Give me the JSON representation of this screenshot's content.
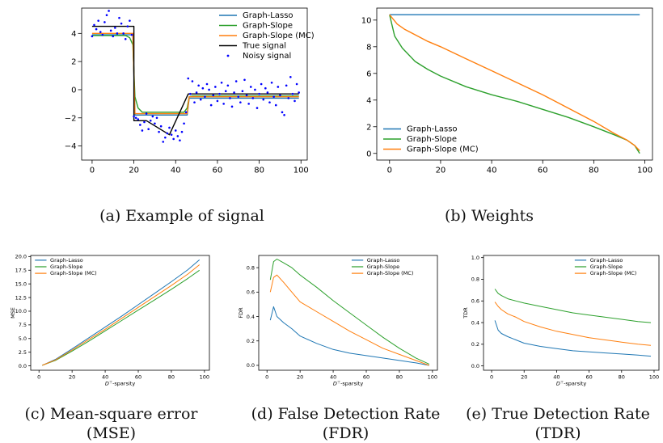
{
  "colors": {
    "lasso": "#1f77b4",
    "slope": "#2ca02c",
    "slope_mc": "#ff7f0e",
    "truth": "#000000",
    "noisy": "#0000ff"
  },
  "captions": {
    "a": [
      "(a)  Example of signal"
    ],
    "b": [
      "(b)  Weights"
    ],
    "c": [
      "(c)  Mean-square error",
      "(MSE)"
    ],
    "d": [
      "(d)  False Detection Rate",
      "(FDR)"
    ],
    "e": [
      "(e)  True Detection Rate",
      "(TDR)"
    ]
  },
  "chart_data": [
    {
      "id": "a",
      "type": "line",
      "xlim": [
        -5,
        103
      ],
      "ylim": [
        -5.0,
        5.8
      ],
      "xticks": [
        "0",
        "20",
        "40",
        "60",
        "80",
        "100"
      ],
      "xtick_values": [
        0,
        20,
        40,
        60,
        80,
        100
      ],
      "yticks": [
        "−4",
        "−2",
        "0",
        "2",
        "4"
      ],
      "ytick_values": [
        -4,
        -2,
        0,
        2,
        4
      ],
      "legend": {
        "position": "top-right",
        "entries": [
          "Graph-Lasso",
          "Graph-Slope",
          "Graph-Slope (MC)",
          "True signal",
          "Noisy signal"
        ]
      },
      "series": [
        {
          "name": "Graph-Lasso",
          "color": "lasso",
          "x": [
            0,
            19.5,
            20.5,
            45.5,
            46.5,
            99
          ],
          "y": [
            3.9,
            3.9,
            -1.8,
            -1.8,
            -0.6,
            -0.6
          ]
        },
        {
          "name": "Graph-Slope",
          "color": "slope",
          "x": [
            0,
            16,
            18,
            19.5,
            20.5,
            22,
            24,
            44,
            45.5,
            46.5,
            48,
            99
          ],
          "y": [
            3.85,
            3.85,
            3.7,
            3.2,
            -0.5,
            -1.3,
            -1.6,
            -1.6,
            -1.3,
            -0.5,
            -0.45,
            -0.45
          ]
        },
        {
          "name": "Graph-Slope (MC)",
          "color": "slope_mc",
          "x": [
            0,
            19.5,
            20.5,
            45.5,
            46.5,
            99
          ],
          "y": [
            4.0,
            4.0,
            -1.7,
            -1.7,
            -0.5,
            -0.5
          ]
        },
        {
          "name": "True signal",
          "color": "truth",
          "x": [
            0,
            20,
            20,
            26,
            26,
            37,
            37,
            46,
            46,
            99
          ],
          "y": [
            4.5,
            4.5,
            -2.2,
            -2.2,
            -2.2,
            -3.2,
            -3.2,
            -0.3,
            -0.3,
            -0.3
          ]
        },
        {
          "name": "Noisy signal",
          "color": "noisy",
          "scatter": true,
          "x": [
            0,
            1,
            2,
            3,
            4,
            5,
            6,
            7,
            8,
            9,
            10,
            11,
            12,
            13,
            14,
            15,
            16,
            17,
            18,
            19,
            20,
            21,
            22,
            23,
            24,
            25,
            26,
            27,
            28,
            29,
            30,
            31,
            32,
            33,
            34,
            35,
            36,
            37,
            38,
            39,
            40,
            41,
            42,
            43,
            44,
            45,
            46,
            47,
            48,
            49,
            50,
            51,
            52,
            53,
            54,
            55,
            56,
            57,
            58,
            59,
            60,
            61,
            62,
            63,
            64,
            65,
            66,
            67,
            68,
            69,
            70,
            71,
            72,
            73,
            74,
            75,
            76,
            77,
            78,
            79,
            80,
            81,
            82,
            83,
            84,
            85,
            86,
            87,
            88,
            89,
            90,
            91,
            92,
            93,
            94,
            95,
            96,
            97,
            98,
            99
          ],
          "y": [
            3.8,
            4.6,
            4.3,
            4.9,
            4.1,
            3.9,
            4.8,
            5.3,
            5.6,
            4.2,
            3.8,
            4.4,
            4.0,
            5.1,
            4.7,
            4.0,
            3.6,
            4.5,
            4.9,
            3.9,
            -1.9,
            -2.0,
            -2.1,
            -2.5,
            -2.9,
            -2.3,
            -1.7,
            -2.8,
            -2.2,
            -1.9,
            -2.4,
            -2.0,
            -3.0,
            -2.6,
            -3.7,
            -3.4,
            -3.1,
            -2.7,
            -3.2,
            -3.5,
            -2.9,
            -3.3,
            -3.6,
            -3.0,
            -2.4,
            -1.6,
            0.8,
            -0.3,
            0.6,
            -0.9,
            -0.2,
            0.3,
            -0.7,
            0.1,
            -0.5,
            0.4,
            0.0,
            -1.1,
            -0.4,
            0.2,
            -0.8,
            -0.3,
            0.5,
            -1.0,
            -0.1,
            0.3,
            -0.6,
            -1.2,
            -0.2,
            0.6,
            -0.5,
            -0.9,
            -0.1,
            0.7,
            -0.4,
            -1.0,
            0.2,
            -0.6,
            0.0,
            -1.3,
            -0.3,
            0.4,
            -0.7,
            0.1,
            -0.2,
            -0.9,
            0.5,
            -0.5,
            -1.1,
            0.2,
            -0.4,
            -1.6,
            -1.8,
            0.3,
            -0.6,
            0.9,
            -0.3,
            -0.8,
            0.4,
            -0.2
          ]
        }
      ]
    },
    {
      "id": "b",
      "type": "line",
      "xlim": [
        -5,
        103
      ],
      "ylim": [
        -0.5,
        10.9
      ],
      "xticks": [
        "0",
        "20",
        "40",
        "60",
        "80",
        "100"
      ],
      "xtick_values": [
        0,
        20,
        40,
        60,
        80,
        100
      ],
      "yticks": [
        "0",
        "2",
        "4",
        "6",
        "8",
        "10"
      ],
      "ytick_values": [
        0,
        2,
        4,
        6,
        8,
        10
      ],
      "legend": {
        "position": "bottom-left",
        "entries": [
          "Graph-Lasso",
          "Graph-Slope",
          "Graph-Slope (MC)"
        ]
      },
      "series": [
        {
          "name": "Graph-Lasso",
          "color": "lasso",
          "x": [
            0,
            98
          ],
          "y": [
            10.4,
            10.4
          ]
        },
        {
          "name": "Graph-Slope",
          "color": "slope",
          "x": [
            0,
            2,
            5,
            10,
            15,
            20,
            30,
            40,
            50,
            60,
            70,
            80,
            88,
            93,
            96,
            98
          ],
          "y": [
            10.4,
            8.8,
            7.9,
            6.9,
            6.3,
            5.8,
            5.0,
            4.4,
            3.9,
            3.3,
            2.7,
            2.0,
            1.4,
            1.0,
            0.6,
            0.0
          ]
        },
        {
          "name": "Graph-Slope (MC)",
          "color": "slope_mc",
          "x": [
            0,
            3,
            6,
            10,
            15,
            20,
            30,
            40,
            50,
            60,
            70,
            80,
            88,
            93,
            96,
            98
          ],
          "y": [
            10.4,
            9.7,
            9.3,
            8.9,
            8.4,
            8.0,
            7.1,
            6.2,
            5.3,
            4.4,
            3.4,
            2.4,
            1.5,
            1.0,
            0.6,
            0.2
          ]
        }
      ]
    },
    {
      "id": "c",
      "type": "line",
      "xlim": [
        -5,
        103
      ],
      "ylim": [
        -0.8,
        20.2
      ],
      "xlabel": "D^⊤-sparsity",
      "ylabel": "MSE",
      "xticks": [
        "0",
        "20",
        "40",
        "60",
        "80",
        "100"
      ],
      "xtick_values": [
        0,
        20,
        40,
        60,
        80,
        100
      ],
      "yticks": [
        "0.0",
        "2.5",
        "5.0",
        "7.5",
        "10.0",
        "12.5",
        "15.0",
        "17.5",
        "20.0"
      ],
      "ytick_values": [
        0,
        2.5,
        5,
        7.5,
        10,
        12.5,
        15,
        17.5,
        20
      ],
      "legend": {
        "position": "top-left",
        "entries": [
          "Graph-Lasso",
          "Graph-Slope",
          "Graph-Slope (MC)"
        ]
      },
      "series": [
        {
          "name": "Graph-Lasso",
          "color": "lasso",
          "x": [
            2,
            10,
            20,
            30,
            40,
            50,
            60,
            70,
            80,
            90,
            97
          ],
          "y": [
            0.1,
            1.2,
            3.1,
            5.1,
            7.1,
            9.1,
            11.2,
            13.3,
            15.4,
            17.6,
            19.4
          ]
        },
        {
          "name": "Graph-Slope",
          "color": "slope",
          "x": [
            2,
            10,
            20,
            30,
            40,
            50,
            60,
            70,
            80,
            90,
            97
          ],
          "y": [
            0.1,
            1.0,
            2.7,
            4.5,
            6.4,
            8.3,
            10.2,
            12.1,
            14.0,
            16.0,
            17.5
          ]
        },
        {
          "name": "Graph-Slope (MC)",
          "color": "slope_mc",
          "x": [
            2,
            10,
            20,
            30,
            40,
            50,
            60,
            70,
            80,
            90,
            97
          ],
          "y": [
            0.1,
            1.1,
            2.9,
            4.8,
            6.7,
            8.7,
            10.7,
            12.7,
            14.7,
            16.8,
            18.5
          ]
        }
      ]
    },
    {
      "id": "d",
      "type": "line",
      "xlim": [
        -5,
        103
      ],
      "ylim": [
        -0.04,
        0.9
      ],
      "xlabel": "D^⊤-sparsity",
      "ylabel": "FDR",
      "xticks": [
        "0",
        "20",
        "40",
        "60",
        "80",
        "100"
      ],
      "xtick_values": [
        0,
        20,
        40,
        60,
        80,
        100
      ],
      "yticks": [
        "0.0",
        "0.2",
        "0.4",
        "0.6",
        "0.8"
      ],
      "ytick_values": [
        0,
        0.2,
        0.4,
        0.6,
        0.8
      ],
      "legend": {
        "position": "top-right",
        "entries": [
          "Graph-Lasso",
          "Graph-Slope",
          "Graph-Slope (MC)"
        ]
      },
      "series": [
        {
          "name": "Graph-Lasso",
          "color": "lasso",
          "x": [
            2,
            4,
            6,
            10,
            15,
            20,
            30,
            40,
            50,
            60,
            70,
            80,
            90,
            98
          ],
          "y": [
            0.37,
            0.48,
            0.4,
            0.35,
            0.3,
            0.24,
            0.18,
            0.13,
            0.1,
            0.08,
            0.06,
            0.04,
            0.02,
            0.0
          ]
        },
        {
          "name": "Graph-Slope",
          "color": "slope",
          "x": [
            2,
            4,
            6,
            10,
            15,
            20,
            30,
            40,
            50,
            60,
            70,
            80,
            90,
            98
          ],
          "y": [
            0.7,
            0.85,
            0.87,
            0.84,
            0.8,
            0.74,
            0.64,
            0.53,
            0.43,
            0.33,
            0.23,
            0.14,
            0.06,
            0.01
          ]
        },
        {
          "name": "Graph-Slope (MC)",
          "color": "slope_mc",
          "x": [
            2,
            4,
            6,
            10,
            15,
            20,
            30,
            40,
            50,
            60,
            70,
            80,
            90,
            98
          ],
          "y": [
            0.6,
            0.72,
            0.74,
            0.68,
            0.6,
            0.52,
            0.44,
            0.36,
            0.28,
            0.21,
            0.14,
            0.09,
            0.04,
            0.0
          ]
        }
      ]
    },
    {
      "id": "e",
      "type": "line",
      "xlim": [
        -5,
        103
      ],
      "ylim": [
        -0.04,
        1.02
      ],
      "xlabel": "D^⊤-sparsity",
      "ylabel": "TDR",
      "xticks": [
        "0",
        "20",
        "40",
        "60",
        "80",
        "100"
      ],
      "xtick_values": [
        0,
        20,
        40,
        60,
        80,
        100
      ],
      "yticks": [
        "0.0",
        "0.2",
        "0.4",
        "0.6",
        "0.8",
        "1.0"
      ],
      "ytick_values": [
        0,
        0.2,
        0.4,
        0.6,
        0.8,
        1.0
      ],
      "legend": {
        "position": "top-right",
        "entries": [
          "Graph-Lasso",
          "Graph-Slope",
          "Graph-Slope (MC)"
        ]
      },
      "series": [
        {
          "name": "Graph-Lasso",
          "color": "lasso",
          "x": [
            2,
            4,
            6,
            10,
            15,
            20,
            30,
            40,
            50,
            60,
            70,
            80,
            90,
            98
          ],
          "y": [
            0.42,
            0.33,
            0.3,
            0.27,
            0.24,
            0.21,
            0.18,
            0.16,
            0.14,
            0.13,
            0.12,
            0.11,
            0.1,
            0.09
          ]
        },
        {
          "name": "Graph-Slope",
          "color": "slope",
          "x": [
            2,
            4,
            6,
            10,
            15,
            20,
            30,
            40,
            50,
            60,
            70,
            80,
            90,
            98
          ],
          "y": [
            0.71,
            0.67,
            0.65,
            0.62,
            0.6,
            0.58,
            0.55,
            0.52,
            0.49,
            0.47,
            0.45,
            0.43,
            0.41,
            0.4
          ]
        },
        {
          "name": "Graph-Slope (MC)",
          "color": "slope_mc",
          "x": [
            2,
            4,
            6,
            10,
            15,
            20,
            30,
            40,
            50,
            60,
            70,
            80,
            90,
            98
          ],
          "y": [
            0.59,
            0.55,
            0.52,
            0.48,
            0.45,
            0.41,
            0.36,
            0.32,
            0.29,
            0.26,
            0.24,
            0.22,
            0.2,
            0.19
          ]
        }
      ]
    }
  ]
}
